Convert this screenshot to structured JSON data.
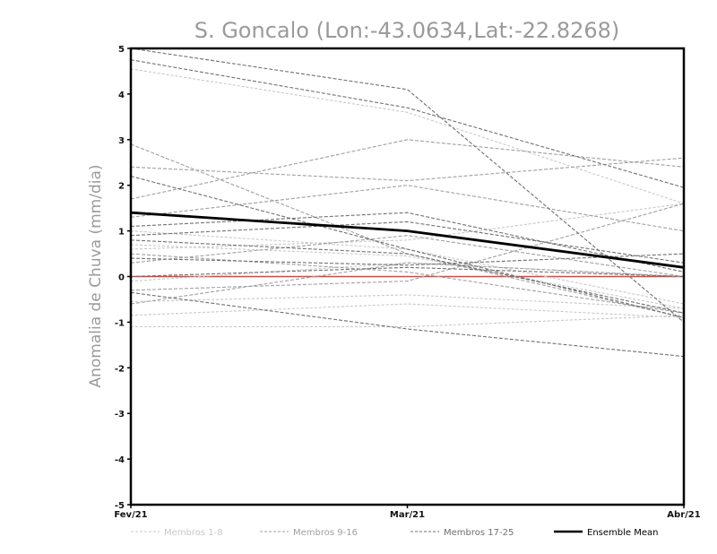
{
  "chart_data": {
    "type": "line",
    "title": "S. Goncalo (Lon:-43.0634,Lat:-22.8268)",
    "xlabel": "",
    "ylabel": "Anomalia de Chuva (mm/dia)",
    "categories": [
      "Fev/21",
      "Mar/21",
      "Abr/21"
    ],
    "ylim": [
      -5,
      5
    ],
    "yticks": [
      "5",
      "4",
      "3",
      "2",
      "1",
      "0",
      "-1",
      "-2",
      "-3",
      "-4",
      "-5"
    ],
    "grid": false,
    "legend_position": "bottom",
    "zero_line_color": "#e8413c",
    "legend": [
      {
        "label": "Membros 1-8",
        "color": "#c8c8c8"
      },
      {
        "label": "Membros 9-16",
        "color": "#a0a0a0"
      },
      {
        "label": "Membros 17-25",
        "color": "#707070"
      },
      {
        "label": "Ensemble Mean",
        "color": "#000000"
      }
    ],
    "groups": [
      {
        "color": "#c8c8c8",
        "dash": "3,2",
        "members": [
          [
            4.55,
            3.6,
            1.6
          ],
          [
            1.0,
            0.6,
            -0.6
          ],
          [
            0.7,
            0.45,
            -0.7
          ],
          [
            0.6,
            0.8,
            1.6
          ],
          [
            -0.1,
            0.3,
            0.0
          ],
          [
            -0.55,
            -0.4,
            -0.7
          ],
          [
            -0.85,
            -0.6,
            -0.9
          ],
          [
            -1.1,
            -1.1,
            -0.85
          ]
        ]
      },
      {
        "color": "#a0a0a0",
        "dash": "4,2",
        "members": [
          [
            2.9,
            0.5,
            -0.9
          ],
          [
            2.4,
            2.1,
            2.6
          ],
          [
            1.7,
            3.0,
            2.4
          ],
          [
            1.3,
            2.0,
            1.0
          ],
          [
            0.5,
            0.1,
            -0.8
          ],
          [
            0.3,
            0.9,
            0.0
          ],
          [
            -0.3,
            -0.1,
            1.6
          ],
          [
            -0.6,
            0.3,
            0.0
          ]
        ]
      },
      {
        "color": "#707070",
        "dash": "4,2",
        "members": [
          [
            4.75,
            3.7,
            1.95
          ],
          [
            5.0,
            4.1,
            -1.0
          ],
          [
            2.2,
            0.6,
            -0.9
          ],
          [
            1.1,
            1.4,
            0.1
          ],
          [
            0.9,
            1.2,
            0.3
          ],
          [
            0.8,
            0.5,
            -0.8
          ],
          [
            0.4,
            0.25,
            0.5
          ],
          [
            0.0,
            0.2,
            0.0
          ],
          [
            -0.35,
            -1.15,
            -1.75
          ]
        ]
      }
    ],
    "series": [
      {
        "name": "Ensemble Mean",
        "values": [
          1.4,
          1.0,
          0.2
        ]
      }
    ]
  }
}
